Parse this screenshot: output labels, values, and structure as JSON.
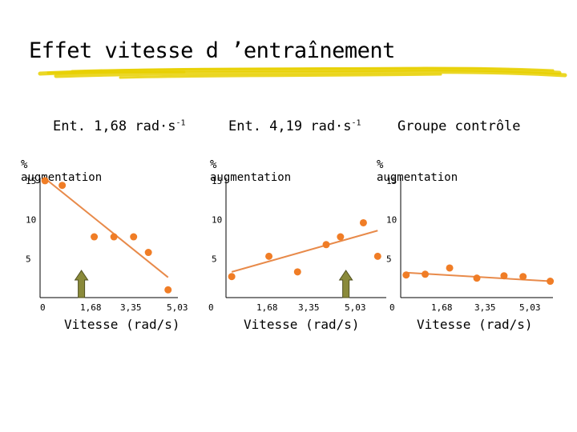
{
  "page": {
    "title": "Effet vitesse d ’entraînement"
  },
  "colors": {
    "marker": "#F07D26",
    "fit_line": "#E88A4A",
    "arrow_fill": "#8A8A3A",
    "arrow_stroke": "#505020",
    "brush": "#E8D000",
    "axis": "#000000"
  },
  "chart_data": [
    {
      "type": "scatter",
      "title": "Ent. 1,68 rad·s",
      "title_sup": "-1",
      "ylabel": "% augmentation",
      "xlabel": "Vitesse (rad/s)",
      "x_ticks": [
        "0",
        "1,68",
        "3,35",
        "5,03"
      ],
      "y_ticks": [
        "15",
        "10",
        "5"
      ],
      "xlim": [
        0,
        5.6
      ],
      "ylim": [
        0,
        15.4
      ],
      "points": [
        {
          "x": 0.2,
          "y": 15.0
        },
        {
          "x": 0.9,
          "y": 14.4
        },
        {
          "x": 2.2,
          "y": 7.8
        },
        {
          "x": 3.0,
          "y": 7.8
        },
        {
          "x": 3.8,
          "y": 7.8
        },
        {
          "x": 4.4,
          "y": 5.8
        },
        {
          "x": 5.2,
          "y": 1.0
        }
      ],
      "fit": [
        [
          0.2,
          15.3
        ],
        [
          5.2,
          2.6
        ]
      ],
      "arrow_x": 1.68,
      "arrow": "training-speed"
    },
    {
      "type": "scatter",
      "title": "Ent. 4,19 rad·s",
      "title_sup": "-1",
      "ylabel": "% augmentation",
      "xlabel": "Vitesse (rad/s)",
      "x_ticks": [
        "0",
        "1,68",
        "3,35",
        "5,03"
      ],
      "y_ticks": [
        "15",
        "10",
        "5"
      ],
      "xlim": [
        0,
        5.6
      ],
      "ylim": [
        0,
        15.4
      ],
      "points": [
        {
          "x": 0.2,
          "y": 2.7
        },
        {
          "x": 1.5,
          "y": 5.3
        },
        {
          "x": 2.5,
          "y": 3.3
        },
        {
          "x": 3.5,
          "y": 6.8
        },
        {
          "x": 4.0,
          "y": 7.8
        },
        {
          "x": 4.8,
          "y": 9.6
        },
        {
          "x": 5.3,
          "y": 5.3
        }
      ],
      "fit": [
        [
          0.2,
          3.3
        ],
        [
          5.3,
          8.6
        ]
      ],
      "arrow_x": 4.19,
      "arrow": "training-speed"
    },
    {
      "type": "scatter",
      "title": "Groupe contrôle",
      "title_sup": "",
      "ylabel": "% augmentation",
      "xlabel": "Vitesse (rad/s)",
      "x_ticks": [
        "0",
        "1,68",
        "3,35",
        "5,03"
      ],
      "y_ticks": [
        "15",
        "10",
        "5"
      ],
      "xlim": [
        0,
        5.6
      ],
      "ylim": [
        0,
        15.4
      ],
      "points": [
        {
          "x": 0.2,
          "y": 2.9
        },
        {
          "x": 0.9,
          "y": 3.0
        },
        {
          "x": 1.8,
          "y": 3.8
        },
        {
          "x": 2.8,
          "y": 2.5
        },
        {
          "x": 3.8,
          "y": 2.8
        },
        {
          "x": 4.5,
          "y": 2.7
        },
        {
          "x": 5.5,
          "y": 2.1
        }
      ],
      "fit": [
        [
          0.2,
          3.2
        ],
        [
          5.5,
          2.1
        ]
      ],
      "arrow_x": null,
      "arrow": ""
    }
  ]
}
